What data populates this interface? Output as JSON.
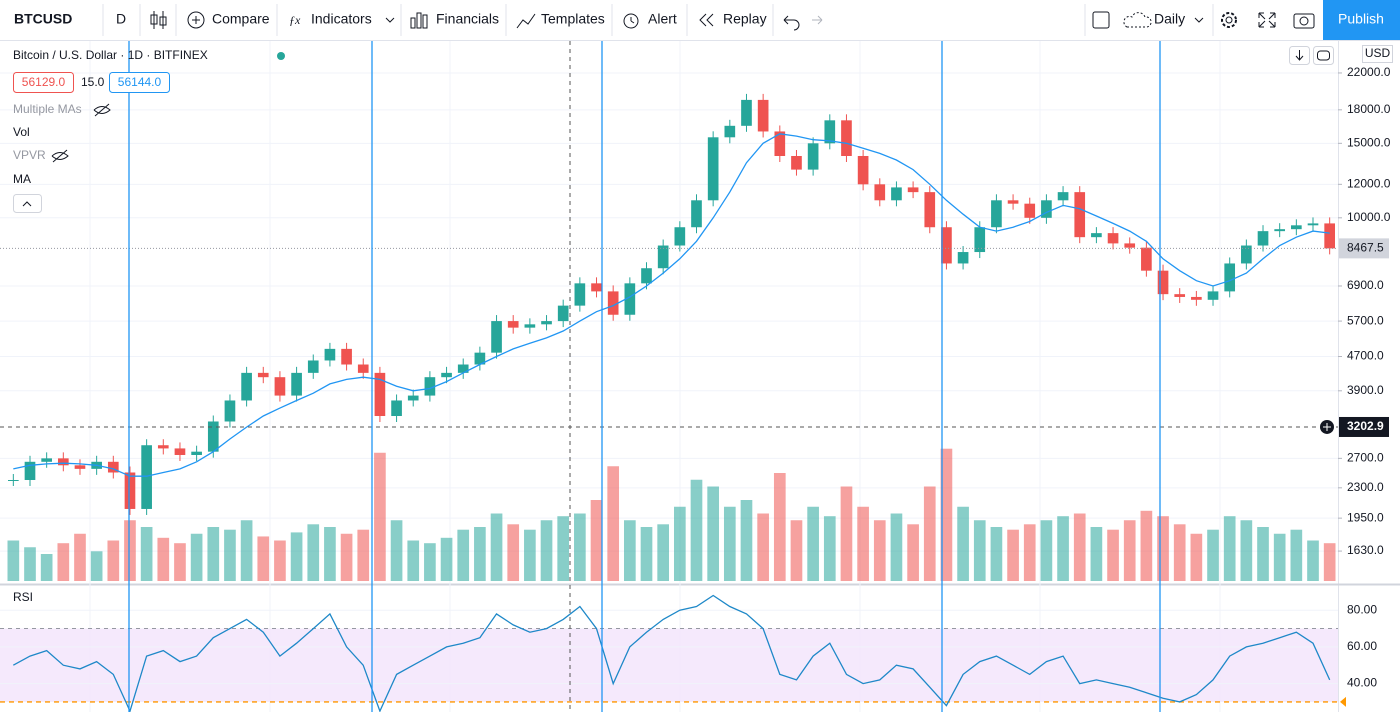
{
  "toolbar": {
    "symbol": "BTCUSD",
    "interval": "D",
    "compare": "Compare",
    "indicators": "Indicators",
    "financials": "Financials",
    "templates": "Templates",
    "alert": "Alert",
    "replay": "Replay",
    "timeframe": "Daily",
    "publish": "Publish"
  },
  "legend": {
    "title": "Bitcoin / U.S. Dollar · 1D · BITFINEX",
    "bid": "56129.0",
    "spread": "15.0",
    "ask": "56144.0",
    "studies": [
      "Multiple MAs",
      "Vol",
      "VPVR",
      "MA"
    ],
    "rsi": "RSI",
    "currency": "USD"
  },
  "chart_data": {
    "type": "candlestick",
    "log": true,
    "up_color": "#26a69a",
    "down_color": "#ef5350",
    "grid": true,
    "close": [
      2400,
      2650,
      2700,
      2600,
      2550,
      2650,
      2500,
      2050,
      2900,
      2850,
      2750,
      2800,
      3300,
      3700,
      4300,
      4200,
      3800,
      4300,
      4600,
      4900,
      4500,
      4300,
      3400,
      3700,
      3800,
      4200,
      4300,
      4500,
      4800,
      5700,
      5500,
      5600,
      5700,
      6200,
      7000,
      6700,
      5900,
      7000,
      7600,
      8600,
      9500,
      11000,
      15500,
      16500,
      19000,
      16000,
      14000,
      13000,
      15000,
      17000,
      14000,
      12000,
      11000,
      11800,
      11500,
      9500,
      7800,
      8300,
      9500,
      11000,
      10800,
      10000,
      11000,
      11500,
      9000,
      9200,
      8700,
      8500,
      7500,
      6600,
      6500,
      6400,
      6700,
      7800,
      8600,
      9300,
      9400,
      9600,
      9700,
      8467
    ],
    "ma": {
      "color": "#2196f3",
      "values": [
        2550,
        2600,
        2620,
        2630,
        2620,
        2600,
        2550,
        2450,
        2450,
        2500,
        2550,
        2650,
        2800,
        3000,
        3200,
        3400,
        3550,
        3700,
        3850,
        4050,
        4150,
        4200,
        4150,
        4000,
        3900,
        3950,
        4100,
        4300,
        4500,
        4700,
        4900,
        5050,
        5200,
        5400,
        5700,
        6000,
        6200,
        6500,
        6900,
        7400,
        8000,
        8800,
        10000,
        11500,
        13500,
        15000,
        15800,
        15600,
        15300,
        15200,
        15000,
        14600,
        14200,
        13700,
        13000,
        12000,
        11000,
        10200,
        9500,
        9300,
        9500,
        9800,
        10300,
        10700,
        10500,
        10100,
        9700,
        9300,
        8800,
        8000,
        7500,
        7100,
        6900,
        7100,
        7400,
        8000,
        8600,
        9000,
        9300,
        9200
      ]
    },
    "volume": {
      "ylim": [
        0,
        400
      ],
      "values": [
        30,
        25,
        20,
        28,
        35,
        22,
        30,
        45,
        40,
        32,
        28,
        35,
        40,
        38,
        45,
        33,
        30,
        36,
        42,
        40,
        35,
        38,
        95,
        45,
        30,
        28,
        32,
        38,
        40,
        50,
        42,
        38,
        45,
        48,
        50,
        60,
        85,
        45,
        40,
        42,
        55,
        75,
        70,
        55,
        60,
        50,
        80,
        45,
        55,
        48,
        70,
        55,
        45,
        50,
        42,
        70,
        98,
        55,
        45,
        40,
        38,
        42,
        45,
        48,
        50,
        40,
        38,
        45,
        52,
        48,
        42,
        35,
        38,
        48,
        45,
        40,
        35,
        38,
        30,
        28
      ]
    },
    "ylim": [
      1385,
      26180
    ],
    "yticks": [
      {
        "value": 22000,
        "label": "22000.0"
      },
      {
        "value": 18000,
        "label": "18000.0"
      },
      {
        "value": 15000,
        "label": "15000.0"
      },
      {
        "value": 12000,
        "label": "12000.0"
      },
      {
        "value": 10000,
        "label": "10000.0"
      },
      {
        "value": 6900,
        "label": "6900.0"
      },
      {
        "value": 5700,
        "label": "5700.0"
      },
      {
        "value": 4700,
        "label": "4700.0"
      },
      {
        "value": 3900,
        "label": "3900.0"
      },
      {
        "value": 2700,
        "label": "2700.0"
      },
      {
        "value": 2300,
        "label": "2300.0"
      },
      {
        "value": 1950,
        "label": "1950.0"
      },
      {
        "value": 1630,
        "label": "1630.0"
      }
    ],
    "last_price": 8467.5,
    "crosshair_price": 3202.9,
    "rsi": {
      "color": "#1e88c8",
      "band": [
        30,
        70
      ],
      "ylim": [
        24.5,
        93.2
      ],
      "yticks": [
        {
          "value": 80,
          "label": "80.00"
        },
        {
          "value": 60,
          "label": "60.00"
        },
        {
          "value": 40,
          "label": "40.00"
        }
      ],
      "values": [
        50,
        55,
        58,
        50,
        48,
        52,
        45,
        25,
        55,
        58,
        52,
        55,
        65,
        70,
        75,
        68,
        55,
        62,
        70,
        78,
        60,
        50,
        25,
        45,
        50,
        55,
        60,
        62,
        65,
        78,
        72,
        68,
        70,
        75,
        82,
        70,
        40,
        60,
        68,
        75,
        80,
        82,
        88,
        82,
        78,
        70,
        45,
        42,
        55,
        62,
        45,
        40,
        42,
        50,
        48,
        38,
        28,
        45,
        52,
        55,
        50,
        45,
        52,
        55,
        40,
        42,
        40,
        38,
        35,
        32,
        30,
        34,
        42,
        55,
        60,
        62,
        65,
        68,
        62,
        42
      ]
    }
  }
}
